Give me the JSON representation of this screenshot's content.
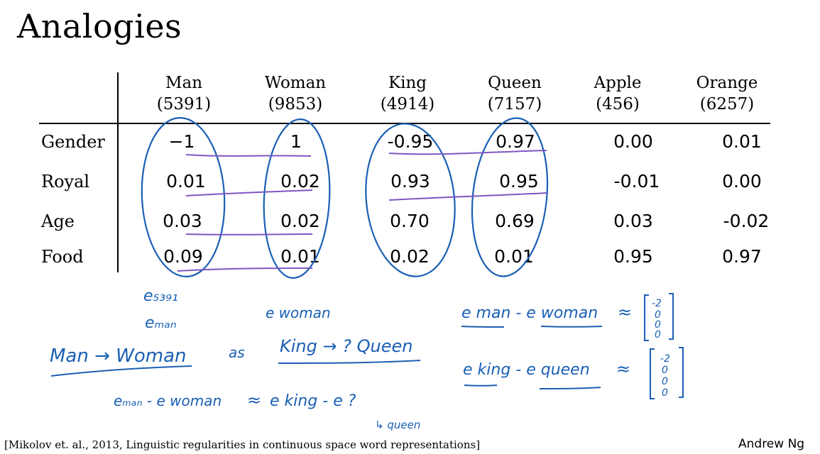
{
  "title": "Analogies",
  "columns": [
    {
      "word": "Man",
      "index": "(5391)"
    },
    {
      "word": "Woman",
      "index": "(9853)"
    },
    {
      "word": "King",
      "index": "(4914)"
    },
    {
      "word": "Queen",
      "index": "(7157)"
    },
    {
      "word": "Apple",
      "index": "(456)"
    },
    {
      "word": "Orange",
      "index": "(6257)"
    }
  ],
  "rows": [
    {
      "label": "Gender",
      "values": [
        "−1",
        "1",
        "-0.95",
        "0.97",
        "0.00",
        "0.01"
      ]
    },
    {
      "label": "Royal",
      "values": [
        "0.01",
        "0.02",
        "0.93",
        "0.95",
        "-0.01",
        "0.00"
      ]
    },
    {
      "label": "Age",
      "values": [
        "0.03",
        "0.02",
        "0.70",
        "0.69",
        "0.03",
        "-0.02"
      ]
    },
    {
      "label": "Food",
      "values": [
        "0.09",
        "0.01",
        "0.02",
        "0.01",
        "0.95",
        "0.97"
      ]
    }
  ],
  "handwriting": {
    "e_5391": "e₅₃₉₁",
    "e_man": "eₘₐₙ",
    "e_woman": "e woman",
    "analogy_man": "Man → Woman",
    "analogy_as": "as",
    "analogy_king": "King → ? Queen",
    "eq_left": "eₘₐₙ - e woman",
    "approx": "≈",
    "eq_right": "e king - e ?",
    "queen_note": "↳ queen",
    "diff1": "e man - e woman",
    "diff2": "e king - e queen",
    "vec1": [
      "-2",
      "0",
      "0",
      "0"
    ],
    "vec2": [
      "-2",
      "0",
      "0",
      "0"
    ]
  },
  "citation": "[Mikolov et. al., 2013, Linguistic regularities in continuous space word representations]",
  "author": "Andrew Ng",
  "colors": {
    "blue_ink": "#1a5fb4",
    "purple_ink": "#7e57c2"
  }
}
